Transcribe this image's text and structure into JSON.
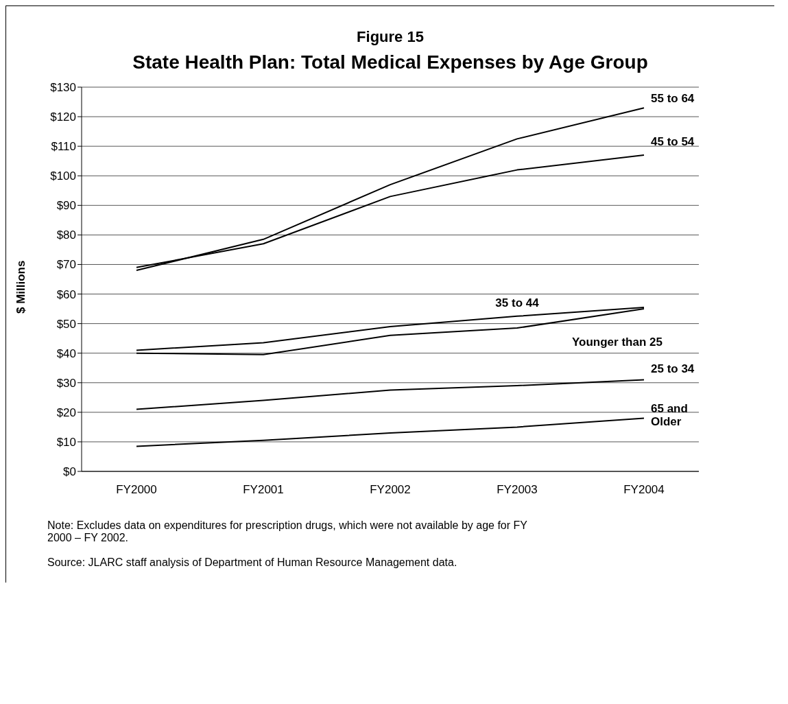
{
  "chart_data": {
    "type": "line",
    "title": "Figure 15",
    "subtitle": "State Health Plan:  Total Medical Expenses by Age Group",
    "ylabel": "$ Millions",
    "categories": [
      "FY2000",
      "FY2001",
      "FY2002",
      "FY2003",
      "FY2004"
    ],
    "series": [
      {
        "name": "55 to 64",
        "color": "#000000",
        "values": [
          68,
          78.5,
          97,
          112.5,
          123
        ]
      },
      {
        "name": "45 to 54",
        "color": "#000000",
        "values": [
          69,
          77,
          93,
          102,
          107
        ]
      },
      {
        "name": "35 to 44",
        "color": "#000000",
        "values": [
          41,
          43.5,
          49,
          52.5,
          55.5
        ]
      },
      {
        "name": "Younger than 25",
        "color": "#000000",
        "values": [
          40,
          39.5,
          46,
          48.5,
          55
        ]
      },
      {
        "name": "25 to 34",
        "color": "#000000",
        "values": [
          21,
          24,
          27.5,
          29,
          31
        ]
      },
      {
        "name": "65 and Older",
        "color": "#000000",
        "values": [
          8.5,
          10.5,
          13,
          15,
          18
        ]
      }
    ],
    "ylim": [
      0,
      130
    ],
    "yticks": [
      {
        "value": 0,
        "label": "$0"
      },
      {
        "value": 10,
        "label": "$10"
      },
      {
        "value": 20,
        "label": "$20"
      },
      {
        "value": 30,
        "label": "$30"
      },
      {
        "value": 40,
        "label": "$40"
      },
      {
        "value": 50,
        "label": "$50"
      },
      {
        "value": 60,
        "label": "$60"
      },
      {
        "value": 70,
        "label": "$70"
      },
      {
        "value": 80,
        "label": "$80"
      },
      {
        "value": 90,
        "label": "$90"
      },
      {
        "value": 100,
        "label": "$100"
      },
      {
        "value": 110,
        "label": "$110"
      },
      {
        "value": 120,
        "label": "$120"
      },
      {
        "value": 130,
        "label": "$130"
      }
    ],
    "grid": "y",
    "marker": "none",
    "line_style": "solid",
    "annotations": [
      "Note:  Excludes data on expenditures for prescription drugs, which were not available by age for FY 2000 – FY 2002.",
      "Source: JLARC staff analysis of Department of Human Resource Management data."
    ]
  }
}
